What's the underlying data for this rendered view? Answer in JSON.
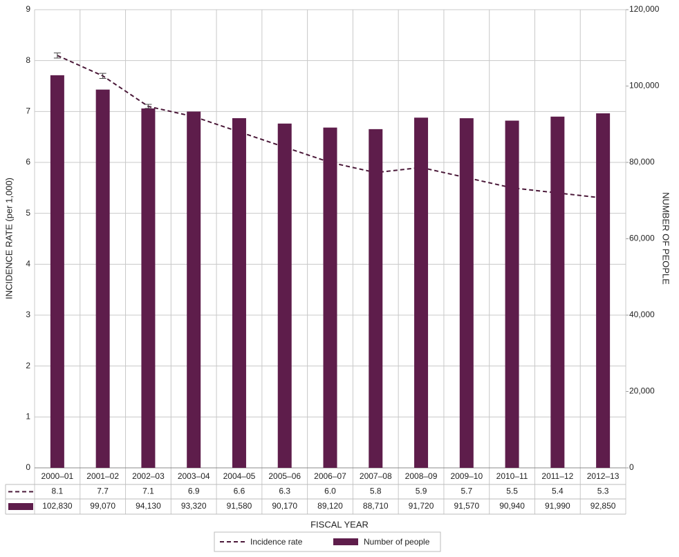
{
  "chart_data": {
    "type": "combo",
    "y_label": "INCIDENCE RATE (per 1,000)",
    "y2_label": "NUMBER OF PEOPLE",
    "x_label": "FISCAL YEAR",
    "categories": [
      "2000–01",
      "2001–02",
      "2002–03",
      "2003–04",
      "2004–05",
      "2005–06",
      "2006–07",
      "2007–08",
      "2008–09",
      "2009–10",
      "2010–11",
      "2011–12",
      "2012–13"
    ],
    "series": [
      {
        "name": "Incidence rate",
        "type": "line",
        "color": "#4a1838",
        "axis": "y",
        "values": [
          8.1,
          7.7,
          7.1,
          6.9,
          6.6,
          6.3,
          6.0,
          5.8,
          5.9,
          5.7,
          5.5,
          5.4,
          5.3
        ],
        "value_labels": [
          "8.1",
          "7.7",
          "7.1",
          "6.9",
          "6.6",
          "6.3",
          "6.0",
          "5.8",
          "5.9",
          "5.7",
          "5.5",
          "5.4",
          "5.3"
        ],
        "errors": [
          0.05,
          0.05,
          0.04,
          0.04,
          0.04,
          0.04,
          0.04,
          0.04,
          0.04,
          0.04,
          0.04,
          0.04,
          0.04
        ]
      },
      {
        "name": "Number of people",
        "type": "bar",
        "color": "#5e1d4b",
        "axis": "y2",
        "values": [
          102830,
          99070,
          94130,
          93320,
          91580,
          90170,
          89120,
          88710,
          91720,
          91570,
          90940,
          91990,
          92850
        ],
        "value_labels": [
          "102,830",
          "99,070",
          "94,130",
          "93,320",
          "91,580",
          "90,170",
          "89,120",
          "88,710",
          "91,720",
          "91,570",
          "90,940",
          "91,990",
          "92,850"
        ]
      }
    ],
    "ylim": [
      0,
      9
    ],
    "yticks": [
      0,
      1,
      2,
      3,
      4,
      5,
      6,
      7,
      8,
      9
    ],
    "y2lim": [
      0,
      120000
    ],
    "y2ticks": [
      0,
      {
        "value": 20000,
        "label": "20,000"
      },
      {
        "value": 40000,
        "label": "40,000"
      },
      {
        "value": 60000,
        "label": "60,000"
      },
      {
        "value": 80000,
        "label": "80,000"
      },
      {
        "value": 100000,
        "label": "100,000"
      },
      {
        "value": 120000,
        "label": "120,000"
      }
    ],
    "grid": true
  }
}
